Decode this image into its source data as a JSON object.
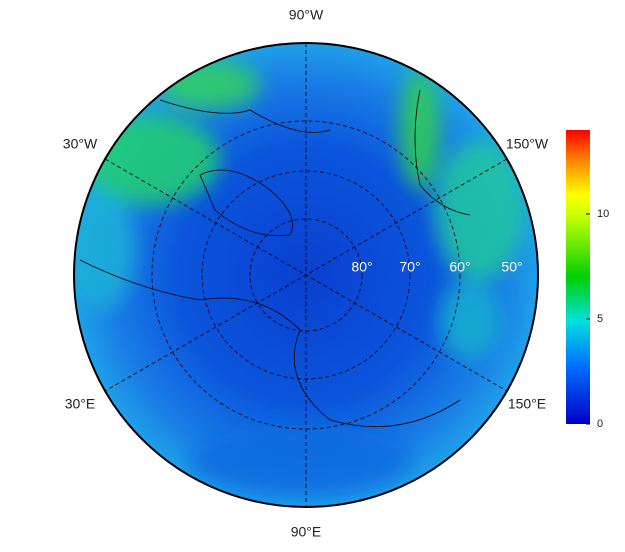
{
  "map": {
    "lon_labels": [
      "90°W",
      "30°W",
      "150°W",
      "30°E",
      "150°E",
      "90°E"
    ],
    "lat_labels": [
      "80°",
      "70°",
      "60°",
      "50°"
    ],
    "colorbar": {
      "lim": [
        0,
        14
      ],
      "ticks": [
        0,
        5,
        10
      ]
    }
  }
}
